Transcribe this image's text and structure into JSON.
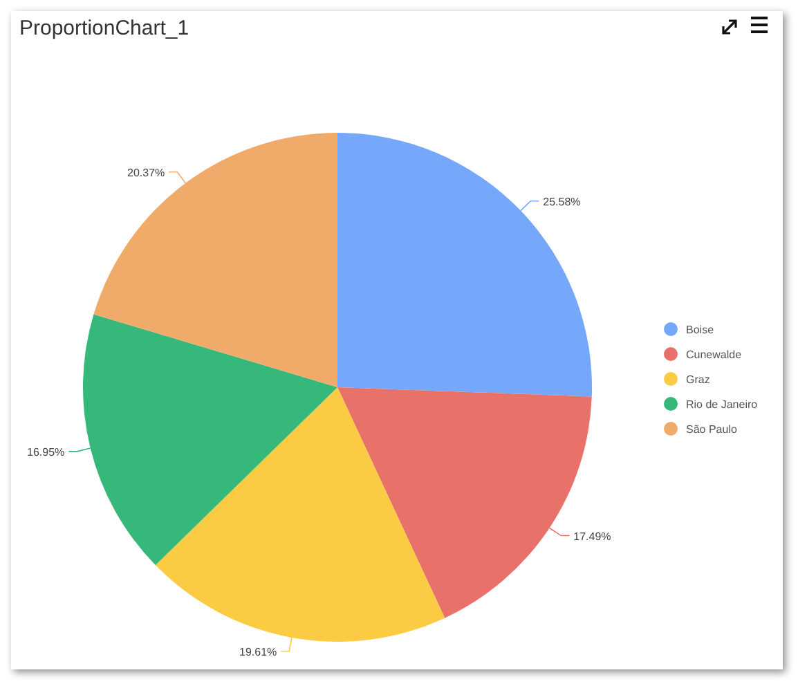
{
  "chart_data": {
    "type": "pie",
    "title": "ProportionChart_1",
    "categories": [
      "Boise",
      "Cunewalde",
      "Graz",
      "Rio de Janeiro",
      "São Paulo"
    ],
    "values": [
      25.58,
      17.49,
      19.61,
      16.95,
      20.37
    ],
    "colors": [
      "#75a7fa",
      "#e8726a",
      "#fccb44",
      "#35b87a",
      "#f0aa69"
    ],
    "value_labels": [
      "25.58%",
      "17.49%",
      "19.61%",
      "16.95%",
      "20.37%"
    ],
    "legend": "right"
  }
}
